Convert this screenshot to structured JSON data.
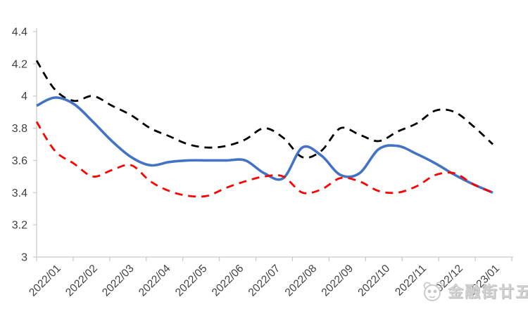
{
  "watermark": {
    "text": "金融街廿五",
    "logo_icon": "panda-logo-icon"
  },
  "chart_data": {
    "type": "line",
    "title": "",
    "grid": false,
    "legend": "none",
    "ylim": [
      3,
      4.4
    ],
    "yticks": [
      3,
      3.2,
      3.4,
      3.6,
      3.8,
      4,
      4.2,
      4.4
    ],
    "ytick_labels": [
      "3",
      "3.2",
      "3.4",
      "3.6",
      "3.8",
      "4",
      "4.2",
      "4.4"
    ],
    "categories": [
      "2022/01",
      "2022/02",
      "2022/03",
      "2022/04",
      "2022/05",
      "2022/06",
      "2022/07",
      "2022/08",
      "2022/09",
      "2022/10",
      "2022/11",
      "2022/12",
      "2023/01"
    ],
    "x_months": [
      -0.5,
      0,
      0.52,
      1.04,
      1.56,
      2.09,
      2.61,
      3.13,
      3.65,
      4.17,
      4.69,
      5.21,
      5.73,
      6.25,
      6.77,
      7.29,
      7.81,
      8.33,
      8.86,
      9.38,
      9.9,
      10.42,
      10.94,
      11.46,
      11.98
    ],
    "series": [
      {
        "name": "black-dashed",
        "color": "#000000",
        "style": "dashed",
        "values": [
          4.22,
          4.04,
          3.97,
          4.0,
          3.94,
          3.88,
          3.8,
          3.75,
          3.7,
          3.68,
          3.69,
          3.73,
          3.8,
          3.74,
          3.62,
          3.66,
          3.8,
          3.76,
          3.72,
          3.78,
          3.83,
          3.91,
          3.9,
          3.81,
          3.7
        ]
      },
      {
        "name": "blue-solid",
        "color": "#4472C4",
        "style": "solid",
        "values": [
          3.94,
          3.99,
          3.95,
          3.84,
          3.72,
          3.62,
          3.57,
          3.59,
          3.6,
          3.6,
          3.6,
          3.6,
          3.52,
          3.49,
          3.68,
          3.63,
          3.51,
          3.52,
          3.67,
          3.69,
          3.64,
          3.58,
          3.51,
          3.45,
          3.4
        ]
      },
      {
        "name": "red-dashed",
        "color": "#FF0000",
        "style": "dashed",
        "values": [
          3.84,
          3.66,
          3.58,
          3.5,
          3.54,
          3.57,
          3.47,
          3.41,
          3.38,
          3.38,
          3.43,
          3.47,
          3.5,
          3.5,
          3.4,
          3.42,
          3.49,
          3.47,
          3.41,
          3.4,
          3.44,
          3.51,
          3.52,
          3.45,
          3.4
        ]
      }
    ]
  }
}
